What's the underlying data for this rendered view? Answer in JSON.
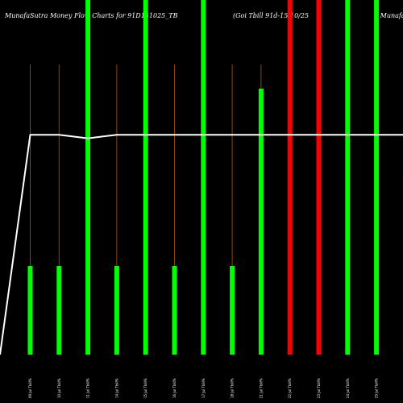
{
  "chart_data": {
    "type": "bar",
    "title_left": "MunafaSutra  Money Flow  Charts for 91D151025_TB",
    "title_right": "(Goi  Tbill 91d-15/10/25",
    "title_far_right": ") MunafaSutra",
    "categories": [
      "09 Jul Tbill%",
      "10 Jul Tbill%",
      "11 Jul Tbill%",
      "14 Jul Tbill%",
      "15 Jul Tbill%",
      "16 Jul Tbill%",
      "17 Jul Tbill%",
      "18 Jul Tbill%",
      "21 Jul Tbill%",
      "22 Jul Tbill%",
      "23 Jul Tbill%",
      "24 Jul Tbill%",
      "25 Jul Tbill%",
      "28 Jul Tbill%"
    ],
    "bar_values": [
      0.25,
      0.25,
      1.0,
      0.25,
      1.0,
      0.25,
      1.0,
      0.25,
      0.75,
      1.0,
      1.0,
      1.0,
      1.0,
      0.5
    ],
    "bar_colors": [
      "#00ff00",
      "#00ff00",
      "#00ff00",
      "#00ff00",
      "#00ff00",
      "#00ff00",
      "#00ff00",
      "#00ff00",
      "#00ff00",
      "#ff0000",
      "#ff0000",
      "#00ff00",
      "#00ff00",
      "#ff0000"
    ],
    "line_values": [
      0.62,
      0.62,
      0.61,
      0.62,
      0.62,
      0.62,
      0.62,
      0.62,
      0.62,
      0.62,
      0.62,
      0.62,
      0.62,
      0.62
    ],
    "line_start_value": 0.0,
    "ylim": [
      0,
      1
    ],
    "colors": {
      "background": "#000000",
      "up": "#00ff00",
      "down": "#ff0000",
      "line": "#ffffff",
      "stem": "#8b4513"
    }
  }
}
